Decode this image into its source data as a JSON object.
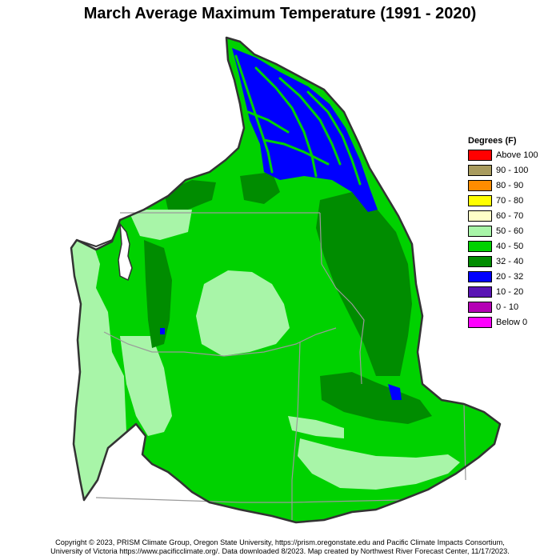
{
  "title": "March Average Maximum Temperature (1991 - 2020)",
  "legend": {
    "title": "Degrees (F)",
    "items": [
      {
        "label": "Above 100",
        "color": "#ff0000"
      },
      {
        "label": "90 - 100",
        "color": "#a89b5e"
      },
      {
        "label": "80 - 90",
        "color": "#ff8c00"
      },
      {
        "label": "70 - 80",
        "color": "#ffff00"
      },
      {
        "label": "60 - 70",
        "color": "#ffffc8"
      },
      {
        "label": "50 - 60",
        "color": "#a8f5a8"
      },
      {
        "label": "40 - 50",
        "color": "#00d200"
      },
      {
        "label": "32 - 40",
        "color": "#008c00"
      },
      {
        "label": "20 - 32",
        "color": "#0000ff"
      },
      {
        "label": "10 - 20",
        "color": "#5a14b4"
      },
      {
        "label": "0 - 10",
        "color": "#b400b4"
      },
      {
        "label": "Below 0",
        "color": "#ff00ff"
      }
    ]
  },
  "footer": {
    "line1": "Copyright © 2023, PRISM Climate Group, Oregon State University, https://prism.oregonstate.edu and Pacific Climate Impacts Consortium,",
    "line2": "University of Victoria https://www.pacificclimate.org/.  Data downloaded 8/2023. Map created by Northwest River Forecast Center, 11/17/2023."
  },
  "colors": {
    "mid": "#00d200",
    "low": "#a8f5a8",
    "high": "#008c00",
    "cold": "#0000ff",
    "outline": "#333333",
    "border": "#9a9a9a"
  }
}
